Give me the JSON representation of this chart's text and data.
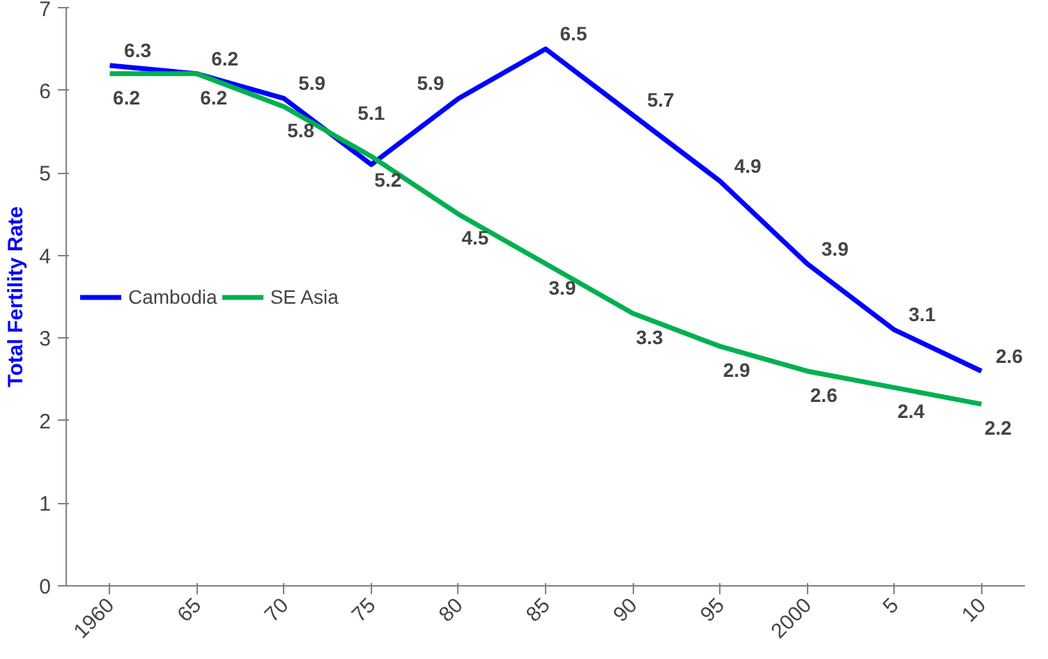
{
  "chart_data": {
    "type": "line",
    "ylabel": "Total Fertility Rate",
    "categories": [
      "1960",
      "65",
      "70",
      "75",
      "80",
      "85",
      "90",
      "95",
      "2000",
      "5",
      "10"
    ],
    "series": [
      {
        "name": "Cambodia",
        "color": "#0000ff",
        "values": [
          6.3,
          6.2,
          5.9,
          5.1,
          5.9,
          6.5,
          5.7,
          4.9,
          3.9,
          3.1,
          2.6
        ]
      },
      {
        "name": "SE Asia",
        "color": "#00b050",
        "values": [
          6.2,
          6.2,
          5.8,
          5.2,
          4.5,
          3.9,
          3.3,
          2.9,
          2.6,
          2.4,
          2.2
        ]
      }
    ],
    "ylim": [
      0,
      7
    ],
    "yticks": [
      0,
      1,
      2,
      3,
      4,
      5,
      6,
      7
    ],
    "grid": false,
    "legend": "left",
    "data_labels": true,
    "marker": "none",
    "line_style": "solid"
  }
}
